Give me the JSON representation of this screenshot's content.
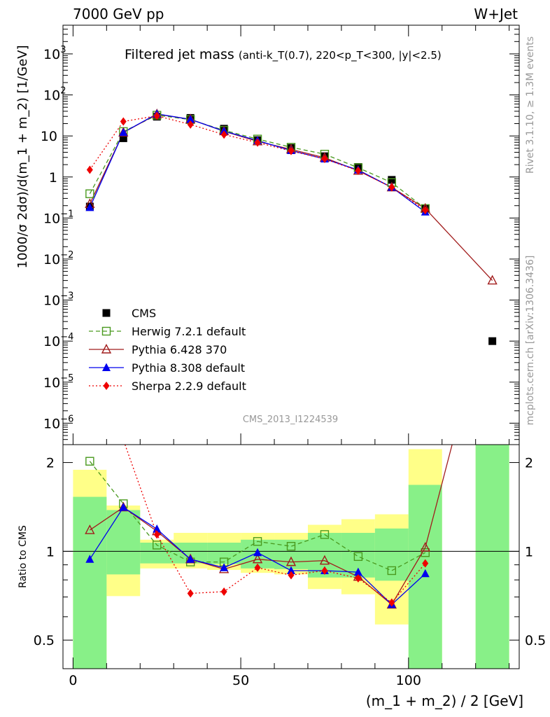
{
  "header": {
    "left": "7000 GeV pp",
    "right": "W+Jet"
  },
  "side": {
    "rivet": "Rivet 3.1.10, ≥ 1.3M events",
    "mcplots": "mcplots.cern.ch [arXiv:1306.3436]"
  },
  "chart_data": [
    {
      "type": "scatter",
      "panel": "main",
      "title": "Filtered jet mass",
      "subtitle": "(anti-k_T(0.7), 220<p_T<300, |y|<2.5)",
      "ylabel": "1000/σ 2dσ)/d(m_1 + m_2) [1/GeV]",
      "yscale": "log",
      "ylim": [
        3e-07,
        5000
      ],
      "xlim": [
        -3,
        133
      ],
      "watermark": "CMS_2013_I1224539",
      "ytick_labels": [
        {
          "base": "10",
          "exp": "3",
          "v": 1000
        },
        {
          "base": "10",
          "exp": "2",
          "v": 100
        },
        {
          "base": "10",
          "exp": "",
          "v": 10
        },
        {
          "base": "1",
          "exp": "",
          "v": 1
        },
        {
          "base": "10",
          "exp": "−1",
          "v": 0.1
        },
        {
          "base": "10",
          "exp": "−2",
          "v": 0.01
        },
        {
          "base": "10",
          "exp": "−3",
          "v": 0.001
        },
        {
          "base": "10",
          "exp": "−4",
          "v": 0.0001
        },
        {
          "base": "10",
          "exp": "−5",
          "v": 1e-05
        },
        {
          "base": "10",
          "exp": "−6",
          "v": 1e-06
        }
      ],
      "series": [
        {
          "name": "CMS",
          "color": "#000000",
          "marker": "square-filled",
          "line": "none",
          "x": [
            5,
            15,
            25,
            35,
            45,
            55,
            65,
            75,
            85,
            95,
            105,
            125
          ],
          "y": [
            0.19,
            8.8,
            29.5,
            27.5,
            15.0,
            7.9,
            5.1,
            3.2,
            1.75,
            0.85,
            0.17,
            0.0001
          ]
        },
        {
          "name": "Herwig 7.2.1 default",
          "color": "#4a9a1f",
          "marker": "square-open",
          "line": "dashed",
          "x": [
            5,
            15,
            25,
            35,
            45,
            55,
            65,
            75,
            85,
            95,
            105
          ],
          "y": [
            0.39,
            12.8,
            32,
            25,
            13.7,
            8.4,
            5.3,
            3.6,
            1.68,
            0.73,
            0.17
          ]
        },
        {
          "name": "Pythia 6.428 370",
          "color": "#a11c1c",
          "marker": "triangle-open",
          "line": "solid",
          "x": [
            5,
            15,
            25,
            35,
            45,
            55,
            65,
            75,
            85,
            95,
            105,
            125
          ],
          "y": [
            0.22,
            12.1,
            34,
            25.5,
            13.0,
            7.4,
            4.7,
            2.95,
            1.42,
            0.56,
            0.17,
            0.003
          ]
        },
        {
          "name": "Pythia 8.308 default",
          "color": "#0000ee",
          "marker": "triangle-filled",
          "line": "solid",
          "x": [
            5,
            15,
            25,
            35,
            45,
            55,
            65,
            75,
            85,
            95,
            105
          ],
          "y": [
            0.18,
            12.2,
            34.5,
            25.3,
            13.1,
            7.7,
            4.4,
            2.75,
            1.48,
            0.56,
            0.14
          ]
        },
        {
          "name": "Sherpa 2.2.9 default",
          "color": "#ee0000",
          "marker": "diamond-filled",
          "line": "dotted",
          "x": [
            5,
            15,
            25,
            35,
            45,
            55,
            65,
            75,
            85,
            95,
            105
          ],
          "y": [
            1.5,
            22.5,
            31,
            19.0,
            10.8,
            6.9,
            4.3,
            2.75,
            1.42,
            0.56,
            0.155
          ]
        }
      ]
    },
    {
      "type": "scatter",
      "panel": "ratio",
      "ylabel": "Ratio to CMS",
      "xlabel": "(m_1 + m_2) / 2 [GeV]",
      "ylim": [
        0.4,
        2.3
      ],
      "xlim": [
        -3,
        133
      ],
      "x_ticks": [
        0,
        50,
        100
      ],
      "y_ticks": [
        0.5,
        1,
        2
      ],
      "reference_line": 1,
      "bands": [
        {
          "x0": 0,
          "x1": 10,
          "green": [
            0.34,
            1.53
          ],
          "yellow": [
            0.34,
            1.89
          ]
        },
        {
          "x0": 10,
          "x1": 20,
          "green": [
            0.835,
            1.38
          ],
          "yellow": [
            0.705,
            1.43
          ]
        },
        {
          "x0": 20,
          "x1": 30,
          "green": [
            0.91,
            1.07
          ],
          "yellow": [
            0.875,
            1.095
          ]
        },
        {
          "x0": 30,
          "x1": 40,
          "green": [
            0.91,
            1.07
          ],
          "yellow": [
            0.875,
            1.155
          ]
        },
        {
          "x0": 40,
          "x1": 50,
          "green": [
            0.905,
            1.07
          ],
          "yellow": [
            0.865,
            1.155
          ]
        },
        {
          "x0": 50,
          "x1": 60,
          "green": [
            0.875,
            1.095
          ],
          "yellow": [
            0.845,
            1.155
          ]
        },
        {
          "x0": 60,
          "x1": 70,
          "green": [
            0.87,
            1.095
          ],
          "yellow": [
            0.835,
            1.155
          ]
        },
        {
          "x0": 70,
          "x1": 80,
          "green": [
            0.815,
            1.155
          ],
          "yellow": [
            0.745,
            1.23
          ]
        },
        {
          "x0": 80,
          "x1": 90,
          "green": [
            0.815,
            1.155
          ],
          "yellow": [
            0.715,
            1.285
          ]
        },
        {
          "x0": 90,
          "x1": 100,
          "green": [
            0.795,
            1.195
          ],
          "yellow": [
            0.565,
            1.335
          ]
        },
        {
          "x0": 100,
          "x1": 110,
          "green": [
            0.4,
            1.68
          ],
          "yellow": [
            0.4,
            2.22
          ]
        },
        {
          "x0": 120,
          "x1": 130,
          "green": [
            0.4,
            2.3
          ],
          "yellow": [
            0.4,
            2.3
          ]
        }
      ],
      "series": [
        {
          "name": "Herwig 7.2.1 default",
          "x": [
            5,
            15,
            25,
            35,
            45,
            55,
            65,
            75,
            85,
            95,
            105
          ],
          "y": [
            2.02,
            1.45,
            1.05,
            0.92,
            0.92,
            1.08,
            1.04,
            1.14,
            0.96,
            0.86,
            0.99
          ]
        },
        {
          "name": "Pythia 6.428 370",
          "x": [
            5,
            15,
            25,
            35,
            45,
            55,
            65,
            75,
            85,
            95,
            105,
            113
          ],
          "y": [
            1.18,
            1.41,
            1.17,
            0.94,
            0.87,
            0.94,
            0.92,
            0.93,
            0.82,
            0.66,
            1.03,
            2.3
          ]
        },
        {
          "name": "Pythia 8.308 default",
          "x": [
            5,
            15,
            25,
            35,
            45,
            55,
            65,
            75,
            85,
            95,
            105
          ],
          "y": [
            0.94,
            1.41,
            1.19,
            0.94,
            0.88,
            0.99,
            0.86,
            0.86,
            0.85,
            0.66,
            0.84
          ]
        },
        {
          "name": "Sherpa 2.2.9 default",
          "x": [
            15.5,
            25,
            35,
            45,
            55,
            65,
            75,
            85,
            95,
            105
          ],
          "y": [
            2.3,
            1.14,
            0.72,
            0.73,
            0.88,
            0.83,
            0.86,
            0.81,
            0.67,
            0.91
          ]
        }
      ]
    }
  ]
}
